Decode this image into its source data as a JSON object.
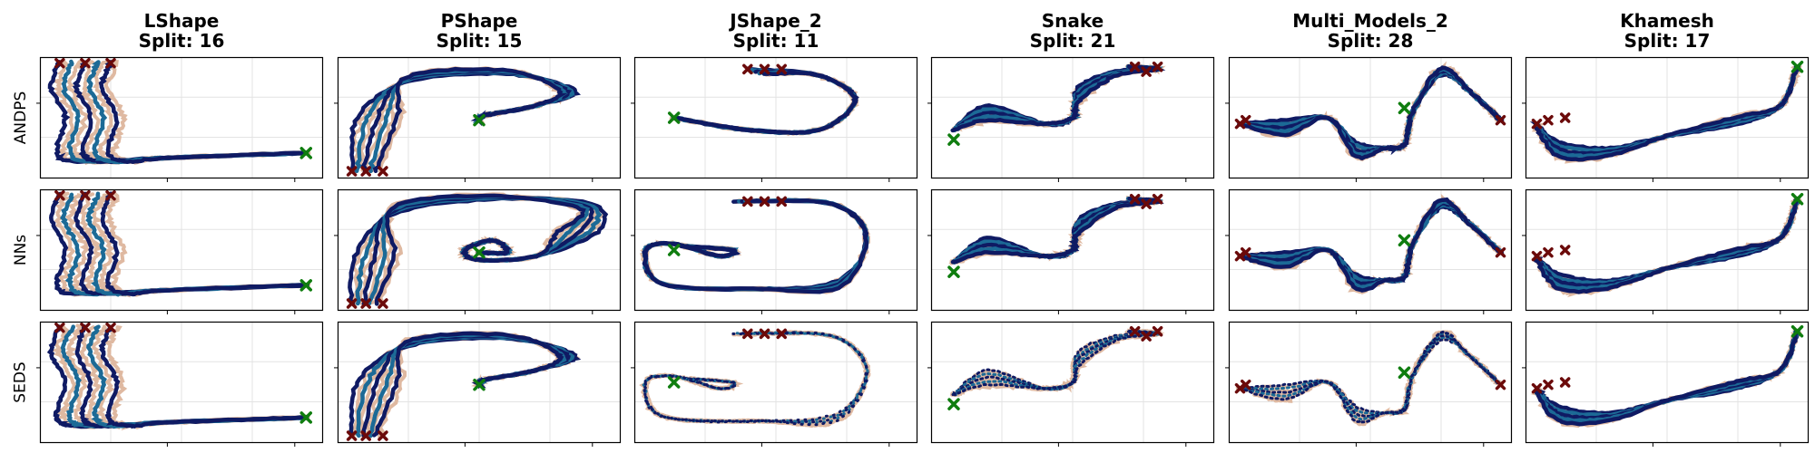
{
  "chart_data": {
    "type": "line",
    "rows": [
      "ANDPS",
      "NNs",
      "SEDS"
    ],
    "columns": [
      {
        "name": "LShape",
        "split": "Split: 16"
      },
      {
        "name": "PShape",
        "split": "Split: 15"
      },
      {
        "name": "JShape_2",
        "split": "Split: 11"
      },
      {
        "name": "Snake",
        "split": "Split: 21"
      },
      {
        "name": "Multi_Models_2",
        "split": "Split: 28"
      },
      {
        "name": "Khamesh",
        "split": "Split: 17"
      }
    ],
    "legend": "none",
    "grid": true,
    "colors": {
      "demonstration": "#dfb9a1",
      "rollout_dark": "#0f1a63",
      "rollout_light": "#1c6a96",
      "start_marker": "#6b0a0a",
      "target_marker": "#0f7d0f",
      "grid": "#e3e3e3",
      "axes": "#000000"
    },
    "markers": {
      "start": "dark red x",
      "target": "green x"
    }
  }
}
